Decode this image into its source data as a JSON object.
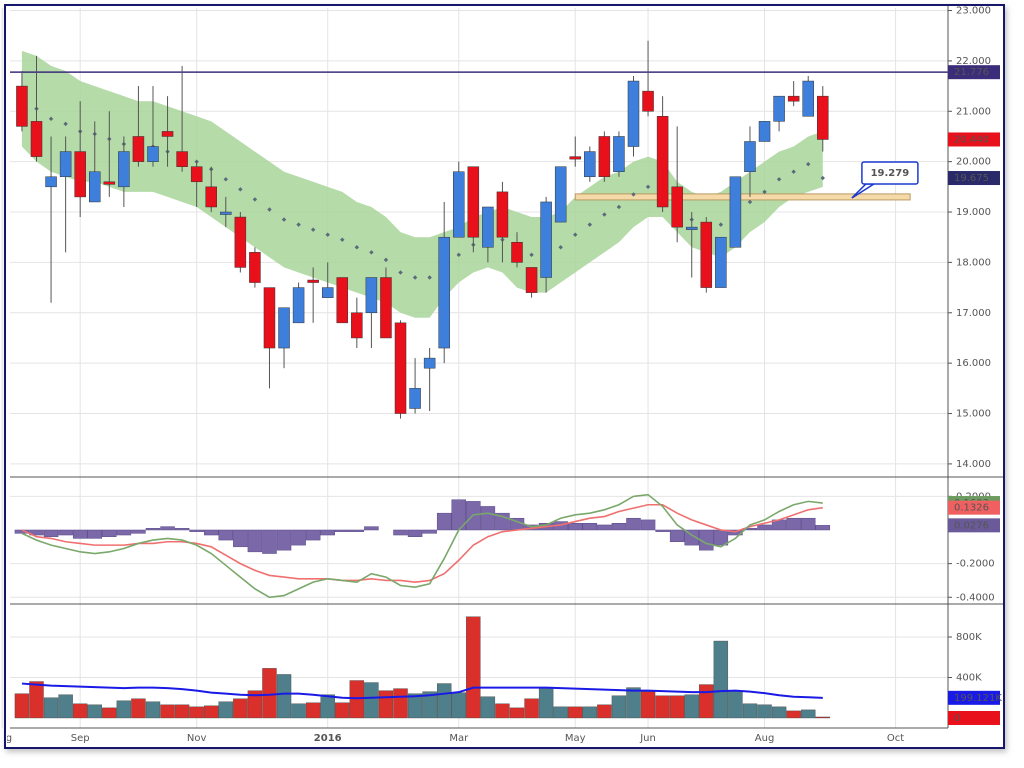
{
  "chart_data": [
    {
      "type": "candlestick",
      "categories": [
        null,
        null,
        null,
        null,
        null,
        null,
        null,
        null,
        null,
        null,
        null,
        null,
        null,
        null,
        null,
        null,
        null,
        null,
        null,
        null,
        null,
        null,
        null,
        null,
        null,
        null,
        null,
        null,
        null,
        null,
        null,
        null,
        null,
        null,
        null,
        null,
        null,
        null,
        null,
        null,
        null,
        null,
        null,
        null,
        null,
        null,
        null,
        null,
        null,
        null,
        null,
        null,
        null,
        null,
        null,
        null
      ],
      "xlim": [
        -0.82,
        63.6
      ],
      "ylim": [
        13.74,
        23.05
      ],
      "yticks": [
        {
          "value": 14,
          "label": "14.000"
        },
        {
          "value": 15,
          "label": "15.000"
        },
        {
          "value": 16,
          "label": "16.000"
        },
        {
          "value": 17,
          "label": "17.000"
        },
        {
          "value": 18,
          "label": "18.000"
        },
        {
          "value": 19,
          "label": "19.000"
        },
        {
          "value": 20,
          "label": "20.000"
        },
        {
          "value": 21,
          "label": "21.000"
        },
        {
          "value": 22,
          "label": "22.000"
        },
        {
          "value": 23,
          "label": "23.000"
        }
      ],
      "grid": true,
      "up_color": "#3f7fdc",
      "down_color": "#e8101a",
      "open": [
        21.5,
        20.8,
        19.5,
        19.7,
        20.2,
        19.2,
        19.6,
        19.5,
        20.5,
        20.0,
        20.6,
        20.2,
        19.9,
        19.5,
        18.95,
        18.9,
        18.2,
        17.5,
        16.3,
        16.8,
        17.65,
        17.3,
        17.7,
        17.0,
        17.0,
        17.7,
        16.8,
        15.1,
        15.9,
        16.3,
        18.5,
        19.9,
        18.3,
        19.4,
        18.4,
        17.9,
        17.7,
        18.8,
        20.1,
        19.7,
        20.5,
        19.8,
        20.3,
        21.4,
        20.9,
        19.5,
        18.65,
        18.8,
        17.5,
        18.3,
        19.8,
        20.4,
        20.8,
        21.3,
        20.9,
        21.3
      ],
      "high": [
        21.8,
        22.1,
        20.5,
        20.5,
        21.2,
        20.8,
        21.0,
        20.5,
        21.5,
        21.5,
        21.3,
        21.9,
        20.0,
        19.9,
        19.3,
        19.0,
        18.3,
        17.5,
        17.1,
        17.6,
        17.9,
        18.0,
        17.7,
        17.3,
        17.7,
        17.9,
        16.85,
        16.1,
        16.3,
        19.2,
        20.0,
        19.9,
        19.1,
        19.6,
        18.6,
        17.9,
        19.3,
        19.9,
        20.5,
        20.3,
        20.6,
        20.6,
        21.7,
        22.4,
        21.3,
        20.7,
        19.0,
        18.9,
        18.5,
        19.7,
        20.7,
        20.8,
        21.3,
        21.6,
        21.7,
        21.5
      ],
      "low": [
        20.6,
        20.0,
        17.2,
        18.2,
        18.9,
        19.2,
        19.3,
        19.1,
        19.9,
        19.9,
        19.9,
        19.8,
        19.1,
        19.0,
        18.7,
        17.8,
        17.5,
        15.5,
        15.9,
        16.8,
        16.8,
        17.3,
        16.8,
        16.3,
        16.3,
        16.5,
        14.9,
        15.0,
        15.05,
        16.0,
        18.5,
        18.2,
        18.0,
        18.0,
        17.9,
        17.3,
        17.4,
        18.8,
        19.9,
        19.6,
        19.6,
        19.7,
        20.1,
        20.9,
        19.0,
        18.4,
        17.7,
        17.4,
        17.5,
        18.3,
        19.3,
        20.4,
        20.6,
        21.1,
        20.9,
        20.2
      ],
      "close": [
        20.7,
        20.1,
        19.7,
        20.2,
        19.3,
        19.8,
        19.55,
        20.2,
        20.0,
        20.3,
        20.5,
        19.9,
        19.6,
        19.1,
        19.0,
        17.9,
        17.6,
        16.3,
        17.1,
        17.5,
        17.6,
        17.5,
        16.8,
        16.5,
        17.7,
        16.5,
        15.0,
        15.5,
        16.1,
        18.5,
        19.8,
        18.5,
        19.1,
        18.5,
        18.0,
        17.4,
        19.2,
        19.9,
        20.05,
        20.2,
        19.7,
        20.5,
        21.6,
        21.0,
        19.1,
        18.7,
        18.7,
        17.5,
        18.5,
        19.7,
        20.4,
        20.8,
        21.3,
        21.2,
        21.6,
        20.44
      ],
      "band": {
        "color": "#a8d59a",
        "upper": [
          22.2,
          22.1,
          21.9,
          21.8,
          21.6,
          21.5,
          21.4,
          21.3,
          21.2,
          21.2,
          21.1,
          21.0,
          20.9,
          20.8,
          20.6,
          20.4,
          20.2,
          20.0,
          19.8,
          19.7,
          19.6,
          19.5,
          19.4,
          19.2,
          19.1,
          18.9,
          18.6,
          18.5,
          18.5,
          18.6,
          18.7,
          18.9,
          19.0,
          19.1,
          19.0,
          18.9,
          18.9,
          19.0,
          19.3,
          19.5,
          19.7,
          19.8,
          20.0,
          20.1,
          20.0,
          19.6,
          19.4,
          19.3,
          19.4,
          19.6,
          19.8,
          20.0,
          20.2,
          20.3,
          20.5,
          20.6
        ],
        "lower": [
          20.3,
          20.0,
          19.8,
          19.7,
          19.6,
          19.6,
          19.5,
          19.4,
          19.4,
          19.4,
          19.3,
          19.2,
          19.1,
          18.9,
          18.7,
          18.5,
          18.3,
          18.1,
          17.9,
          17.8,
          17.7,
          17.6,
          17.5,
          17.4,
          17.3,
          17.2,
          17.0,
          16.9,
          16.9,
          17.3,
          17.6,
          17.8,
          17.9,
          17.8,
          17.5,
          17.4,
          17.4,
          17.6,
          17.8,
          18.0,
          18.2,
          18.4,
          18.7,
          18.9,
          18.9,
          18.6,
          18.3,
          18.2,
          18.1,
          18.3,
          18.6,
          18.8,
          19.1,
          19.3,
          19.4,
          19.5
        ]
      },
      "middle": {
        "color": "#5a6a7a",
        "values": [
          21.25,
          21.05,
          20.85,
          20.75,
          20.6,
          20.55,
          20.45,
          20.35,
          20.3,
          20.3,
          20.2,
          20.1,
          20.0,
          19.85,
          19.65,
          19.45,
          19.25,
          19.05,
          18.85,
          18.75,
          18.65,
          18.55,
          18.45,
          18.3,
          18.2,
          18.05,
          17.8,
          17.7,
          17.7,
          17.95,
          18.15,
          18.35,
          18.45,
          18.45,
          18.25,
          18.15,
          18.15,
          18.3,
          18.55,
          18.75,
          18.95,
          19.1,
          19.35,
          19.5,
          19.45,
          19.1,
          18.85,
          18.75,
          18.75,
          18.95,
          19.2,
          19.4,
          19.65,
          19.8,
          19.95,
          19.675
        ]
      },
      "level": {
        "value": 21.776,
        "label": "21.776",
        "color": "#3b2d7a"
      },
      "markers": [
        {
          "value": 20.44,
          "label": "20.440",
          "color": "#e8101a"
        },
        {
          "value": 19.675,
          "label": "19.675",
          "color": "#2a2a6a"
        }
      ],
      "zone": {
        "low": 19.24,
        "high": 19.36,
        "start": 38,
        "end": 61,
        "color": "#f5d9a8"
      },
      "callout": {
        "value": 19.279,
        "label": "19.279",
        "x": 57
      }
    },
    {
      "type": "macd",
      "categories": [
        null,
        null,
        null,
        null,
        null,
        null,
        null,
        null,
        null,
        null,
        null,
        null,
        null,
        null,
        null,
        null,
        null,
        null,
        null,
        null,
        null,
        null,
        null,
        null,
        null,
        null,
        null,
        null,
        null,
        null,
        null,
        null,
        null,
        null,
        null,
        null,
        null,
        null,
        null,
        null,
        null,
        null,
        null,
        null,
        null,
        null,
        null,
        null,
        null,
        null,
        null,
        null,
        null,
        null,
        null,
        null
      ],
      "xlim": [
        -0.82,
        63.6
      ],
      "ylim": [
        -0.44,
        0.315
      ],
      "yticks": [
        {
          "value": 0.2,
          "label": "0.2000"
        },
        {
          "value": -0.2,
          "label": "-0.2000"
        },
        {
          "value": -0.4,
          "label": "-0.4000"
        }
      ],
      "grid": true,
      "histogram": {
        "color": "#7b68a8",
        "values": [
          -0.02,
          -0.03,
          -0.04,
          -0.03,
          -0.05,
          -0.05,
          -0.04,
          -0.03,
          -0.02,
          0.01,
          0.02,
          0.01,
          -0.01,
          -0.03,
          -0.06,
          -0.1,
          -0.13,
          -0.14,
          -0.12,
          -0.09,
          -0.06,
          -0.03,
          -0.01,
          -0.01,
          0.02,
          0.0,
          -0.03,
          -0.04,
          -0.02,
          0.1,
          0.18,
          0.17,
          0.14,
          0.1,
          0.07,
          0.03,
          0.04,
          0.05,
          0.04,
          0.04,
          0.03,
          0.04,
          0.07,
          0.06,
          -0.01,
          -0.07,
          -0.09,
          -0.12,
          -0.09,
          -0.03,
          0.01,
          0.03,
          0.06,
          0.07,
          0.07,
          0.0276
        ]
      },
      "macd": {
        "color": "#7aa86a",
        "values": [
          -0.02,
          -0.06,
          -0.09,
          -0.11,
          -0.13,
          -0.14,
          -0.13,
          -0.11,
          -0.08,
          -0.06,
          -0.05,
          -0.06,
          -0.09,
          -0.14,
          -0.21,
          -0.28,
          -0.35,
          -0.4,
          -0.39,
          -0.35,
          -0.31,
          -0.29,
          -0.3,
          -0.31,
          -0.26,
          -0.28,
          -0.33,
          -0.34,
          -0.32,
          -0.17,
          0.0,
          0.09,
          0.1,
          0.08,
          0.05,
          0.02,
          0.03,
          0.07,
          0.09,
          0.1,
          0.12,
          0.15,
          0.2,
          0.21,
          0.14,
          0.03,
          -0.03,
          -0.08,
          -0.1,
          -0.05,
          0.03,
          0.06,
          0.11,
          0.15,
          0.17,
          0.1603
        ]
      },
      "signal": {
        "color": "#f07070",
        "values": [
          0.0,
          -0.04,
          -0.05,
          -0.07,
          -0.08,
          -0.09,
          -0.09,
          -0.09,
          -0.08,
          -0.08,
          -0.07,
          -0.07,
          -0.08,
          -0.1,
          -0.15,
          -0.2,
          -0.24,
          -0.27,
          -0.28,
          -0.29,
          -0.29,
          -0.29,
          -0.3,
          -0.3,
          -0.29,
          -0.3,
          -0.3,
          -0.31,
          -0.3,
          -0.26,
          -0.18,
          -0.09,
          -0.04,
          -0.01,
          0.0,
          0.01,
          0.02,
          0.03,
          0.05,
          0.07,
          0.08,
          0.11,
          0.13,
          0.15,
          0.15,
          0.1,
          0.06,
          0.03,
          0.0,
          -0.01,
          0.02,
          0.04,
          0.06,
          0.09,
          0.12,
          0.1326
        ]
      },
      "markers": [
        {
          "value": 0.1603,
          "label": "0.1603",
          "color": "#6e9c60"
        },
        {
          "value": 0.1326,
          "label": "0.1326",
          "color": "#f06060"
        },
        {
          "value": 0.0276,
          "label": "0.0276",
          "color": "#6b5a9a"
        }
      ]
    },
    {
      "type": "volume",
      "categories": [
        null,
        null,
        null,
        null,
        null,
        null,
        null,
        null,
        null,
        null,
        null,
        null,
        null,
        null,
        null,
        null,
        null,
        null,
        null,
        null,
        null,
        null,
        null,
        null,
        null,
        null,
        null,
        null,
        null,
        null,
        null,
        null,
        null,
        null,
        null,
        null,
        null,
        null,
        null,
        null,
        null,
        null,
        null,
        null,
        null,
        null,
        null,
        null,
        null,
        null,
        null,
        null,
        null,
        null,
        null,
        null
      ],
      "xlim": [
        -0.82,
        63.6
      ],
      "ylim": [
        -99000,
        1126000
      ],
      "yticks": [
        {
          "value": 400000,
          "label": "400K"
        },
        {
          "value": 800000,
          "label": "800K"
        }
      ],
      "xticks": [
        {
          "value": -1.35,
          "label": "Aug"
        },
        {
          "value": 4,
          "label": "Sep"
        },
        {
          "value": 12,
          "label": "Nov"
        },
        {
          "value": 21,
          "label": "2016"
        },
        {
          "value": 30,
          "label": "Mar"
        },
        {
          "value": 38,
          "label": "May"
        },
        {
          "value": 43,
          "label": "Jun"
        },
        {
          "value": 51,
          "label": "Aug"
        },
        {
          "value": 60,
          "label": "Oct"
        }
      ],
      "grid": true,
      "up_color": "#4f7f8a",
      "down_color": "#d9302b",
      "values": [
        240000,
        360000,
        200000,
        230000,
        140000,
        130000,
        100000,
        170000,
        190000,
        160000,
        130000,
        130000,
        110000,
        120000,
        160000,
        190000,
        270000,
        490000,
        430000,
        140000,
        150000,
        230000,
        150000,
        370000,
        350000,
        270000,
        290000,
        240000,
        260000,
        340000,
        250000,
        1000000,
        210000,
        140000,
        100000,
        190000,
        300000,
        110000,
        110000,
        110000,
        130000,
        220000,
        300000,
        260000,
        220000,
        220000,
        230000,
        330000,
        760000,
        270000,
        140000,
        130000,
        110000,
        70000,
        80000,
        10000
      ],
      "average": {
        "color": "#1a1ae6",
        "values": [
          340000,
          330000,
          320000,
          315000,
          310000,
          305000,
          300000,
          295000,
          300000,
          300000,
          295000,
          285000,
          270000,
          250000,
          240000,
          230000,
          225000,
          230000,
          240000,
          240000,
          230000,
          215000,
          200000,
          195000,
          200000,
          205000,
          210000,
          215000,
          225000,
          240000,
          255000,
          300000,
          300000,
          300000,
          300000,
          300000,
          300000,
          295000,
          290000,
          285000,
          280000,
          275000,
          270000,
          270000,
          265000,
          260000,
          255000,
          255000,
          265000,
          270000,
          260000,
          245000,
          225000,
          210000,
          205000,
          199121
        ]
      },
      "markers": [
        {
          "value": 199121,
          "label": "199.121K",
          "color": "#1a1ae6"
        },
        {
          "value": 0,
          "label": "0",
          "color": "#e8101a"
        }
      ]
    }
  ]
}
